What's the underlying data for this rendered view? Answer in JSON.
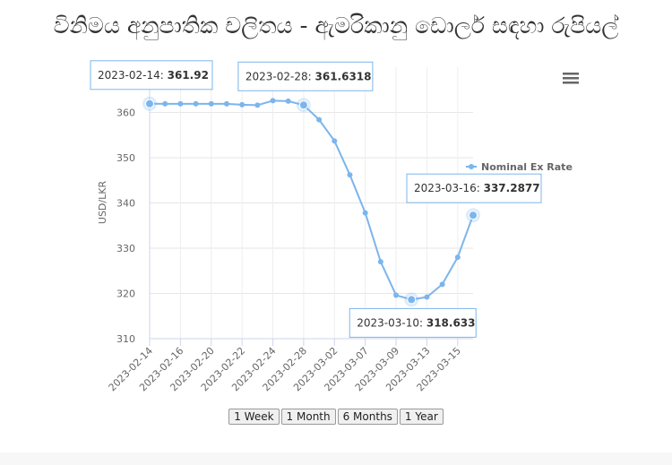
{
  "chart_data": {
    "type": "line",
    "title": "විනිමය අනුපාතික චලිතය - ඇමරිකානු ඩොලර් සඳහා රුපියල්",
    "y_label": "USD/LKR",
    "categories": [
      "2023-02-14",
      null,
      "2023-02-16",
      null,
      "2023-02-20",
      null,
      "2023-02-22",
      null,
      "2023-02-24",
      null,
      "2023-02-28",
      null,
      "2023-03-02",
      null,
      "2023-03-07",
      null,
      "2023-03-09",
      null,
      "2023-03-13",
      null,
      "2023-03-15",
      null
    ],
    "series_name": "Nominal Ex Rate",
    "color": "#7cb5ec",
    "values": [
      361.92,
      361.9,
      361.9,
      361.9,
      361.9,
      361.9,
      361.7,
      361.6,
      362.6,
      362.5,
      361.6318,
      358.4,
      353.7,
      346.2,
      337.8,
      327,
      319.6,
      318.633,
      319.2,
      322,
      328,
      337.2877
    ],
    "ylim": [
      310,
      370
    ],
    "yticks": [
      310,
      320,
      330,
      340,
      350,
      360
    ],
    "grid": true,
    "tooltips": [
      {
        "date": "2023-02-14",
        "value": 361.92
      },
      {
        "date": "2023-02-28",
        "value": 361.6318
      },
      {
        "date": "2023-03-16",
        "value": 337.2877
      },
      {
        "date": "2023-03-10",
        "value": 318.633
      }
    ],
    "range_buttons": [
      "1 Week",
      "1 Month",
      "6 Months",
      "1 Year"
    ]
  }
}
